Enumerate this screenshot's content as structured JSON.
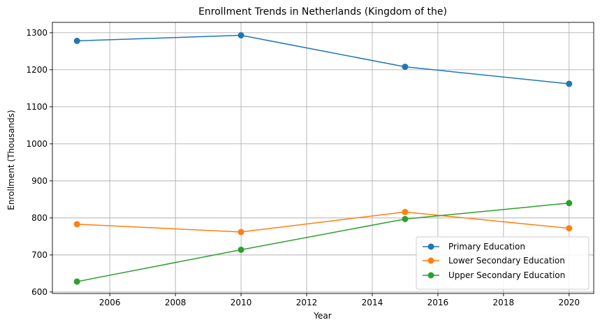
{
  "chart_data": {
    "type": "line",
    "title": "Enrollment Trends in Netherlands (Kingdom of the)",
    "xlabel": "Year",
    "ylabel": "Enrollment (Thousands)",
    "x": [
      2005,
      2010,
      2015,
      2020
    ],
    "xlim": [
      2004.25,
      2020.75
    ],
    "ylim": [
      596,
      1328
    ],
    "xticks": [
      2006,
      2008,
      2010,
      2012,
      2014,
      2016,
      2018,
      2020
    ],
    "yticks": [
      600,
      700,
      800,
      900,
      1000,
      1100,
      1200,
      1300
    ],
    "grid": true,
    "legend_position": "lower right",
    "series": [
      {
        "name": "Primary Education",
        "color": "#1f77b4",
        "values": [
          1278,
          1293,
          1208,
          1162
        ]
      },
      {
        "name": "Lower Secondary Education",
        "color": "#ff7f0e",
        "values": [
          783,
          762,
          816,
          772
        ]
      },
      {
        "name": "Upper Secondary Education",
        "color": "#2ca02c",
        "values": [
          628,
          714,
          797,
          840
        ]
      }
    ]
  }
}
